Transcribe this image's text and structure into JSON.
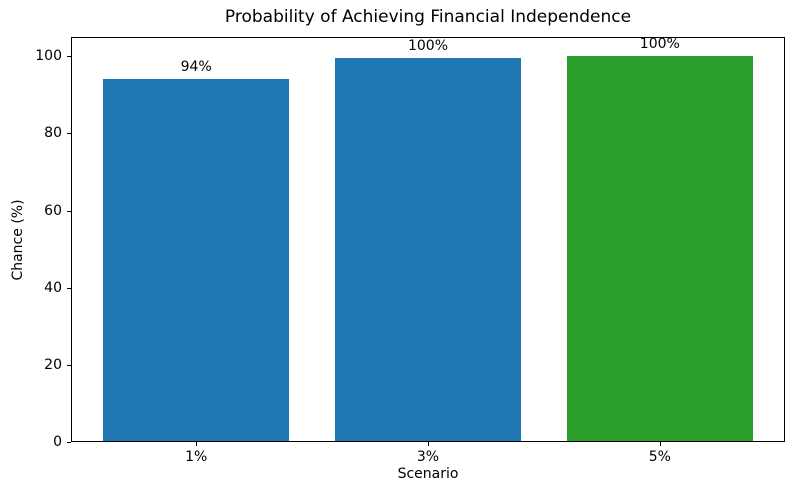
{
  "chart_data": {
    "type": "bar",
    "title": "Probability of Achieving Financial Independence",
    "xlabel": "Scenario",
    "ylabel": "Chance (%)",
    "categories": [
      "1%",
      "3%",
      "5%"
    ],
    "values": [
      94,
      99.5,
      100
    ],
    "bar_labels": [
      "94%",
      "100%",
      "100%"
    ],
    "bar_colors": [
      "#1f77b4",
      "#1f77b4",
      "#2ca02c"
    ],
    "ylim": [
      0,
      105
    ],
    "yticks": [
      0,
      20,
      40,
      60,
      80,
      100
    ],
    "grid": false,
    "legend": "none"
  }
}
